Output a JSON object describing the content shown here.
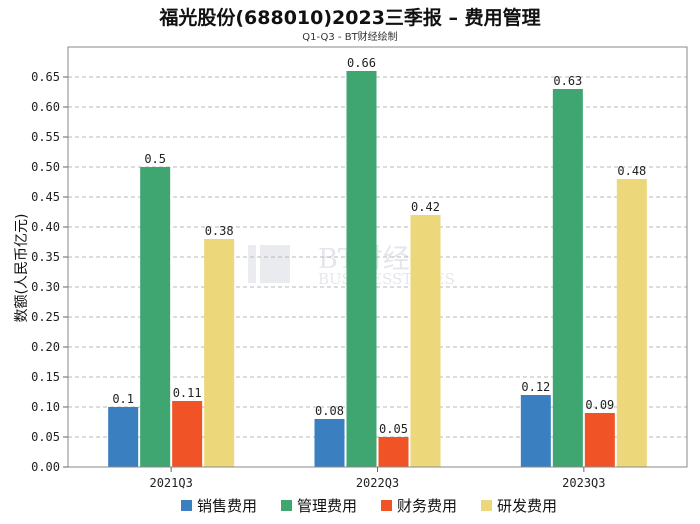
{
  "chart_data": {
    "type": "bar",
    "title": "福光股份(688010)2023三季报 – 费用管理",
    "subtitle": "Q1-Q3 - BT财经绘制",
    "ylabel": "数额(人民币亿元)",
    "xlabel": "",
    "ylim": [
      0,
      0.7
    ],
    "yticks": [
      0.0,
      0.05,
      0.1,
      0.15,
      0.2,
      0.25,
      0.3,
      0.35,
      0.4,
      0.45,
      0.5,
      0.55,
      0.6,
      0.65
    ],
    "grid": true,
    "legend_position": "bottom",
    "categories": [
      "2021Q3",
      "2022Q3",
      "2023Q3"
    ],
    "series": [
      {
        "name": "销售费用",
        "color": "#3a7fbf",
        "values": [
          0.1,
          0.08,
          0.12
        ]
      },
      {
        "name": "管理费用",
        "color": "#3fa672",
        "values": [
          0.5,
          0.66,
          0.63
        ]
      },
      {
        "name": "财务费用",
        "color": "#ef5326",
        "values": [
          0.11,
          0.05,
          0.09
        ]
      },
      {
        "name": "研发费用",
        "color": "#ecd77a",
        "values": [
          0.38,
          0.42,
          0.48
        ]
      }
    ],
    "watermark": {
      "cn": "BT财经",
      "en": "BUSINESSTIMES"
    }
  }
}
